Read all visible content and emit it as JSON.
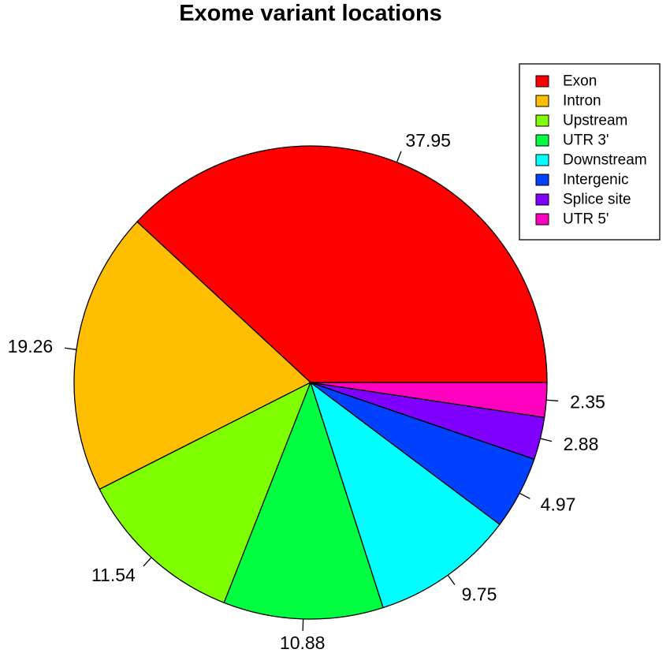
{
  "chart_data": {
    "type": "pie",
    "title": "Exome variant locations",
    "start_angle_deg": 0,
    "direction": "counterclockwise",
    "legend_position": "top-right",
    "slices": [
      {
        "label": "Exon",
        "value": 37.95,
        "color": "#FF0000"
      },
      {
        "label": "Intron",
        "value": 19.26,
        "color": "#FFBF00"
      },
      {
        "label": "Upstream",
        "value": 11.54,
        "color": "#80FF00"
      },
      {
        "label": "UTR 3'",
        "value": 10.88,
        "color": "#00FF40"
      },
      {
        "label": "Downstream",
        "value": 9.75,
        "color": "#00FFFF"
      },
      {
        "label": "Intergenic",
        "value": 4.97,
        "color": "#0040FF"
      },
      {
        "label": "Splice site",
        "value": 2.88,
        "color": "#8000FF"
      },
      {
        "label": "UTR 5'",
        "value": 2.35,
        "color": "#FF00BF"
      }
    ]
  }
}
